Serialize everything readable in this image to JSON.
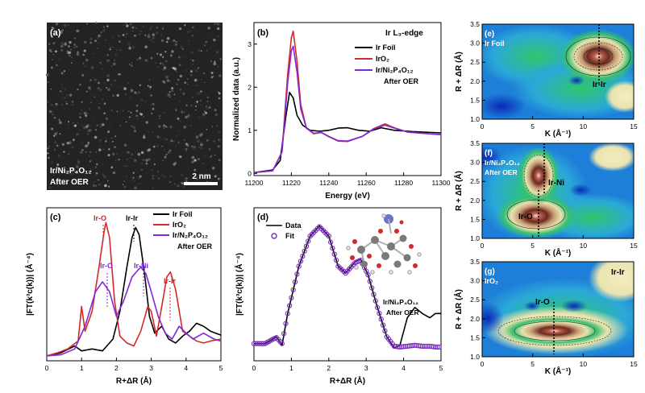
{
  "panels": {
    "a": {
      "label": "(a)",
      "sample_line1": "Ir/Ni₂P₄O₁₂",
      "sample_line2": "After OER",
      "scalebar": "2 nm"
    },
    "b": {
      "label": "(b)",
      "edge_title": "Ir L₃-edge",
      "xlabel": "Energy (eV)",
      "ylabel": "Normalized data (a.u.)"
    },
    "c": {
      "label": "(c)",
      "xlabel": "R+ΔR (Å)",
      "ylabel": "|FT(k³c(k))| (Å⁻⁴)"
    },
    "d": {
      "label": "(d)",
      "xlabel": "R+ΔR (Å)",
      "ylabel": "|FT(k³c(k))| (Å⁻⁴)",
      "sample_line1": "Ir/Ni₂P₄O₁₂",
      "sample_line2": "After OER"
    },
    "e": {
      "label": "(e)",
      "sample": "Ir Foil",
      "peak": "Ir-Ir"
    },
    "f": {
      "label": "(f)",
      "sample_line1": "Ir/Ni₂P₄O₁₂",
      "sample_line2": "After OER",
      "peak1": "Ir-Ni",
      "peak2": "Ir-O"
    },
    "g": {
      "label": "(g)",
      "sample": "IrO₂",
      "peak1": "Ir-O",
      "peak2": "Ir-Ir"
    },
    "wt_xlabel": "K (Å⁻¹)",
    "wt_ylabel": "R + ΔR (Å)"
  },
  "legends": {
    "b": [
      "Ir Foil",
      "IrO₂",
      "Ir/Ni₂P₄O₁₂",
      "After OER"
    ],
    "c": [
      "Ir Foil",
      "IrO₂",
      "Ir/N₂P₄O₁₂",
      "After OER"
    ],
    "d": [
      "Data",
      "Fit"
    ]
  },
  "annotations_c": {
    "iro_red": "Ir-O",
    "irir_black": "Ir-Ir",
    "iro_purple": "Ir-O",
    "irni_purple": "Ir-Ni",
    "irir_red": "Ir-Ir"
  },
  "colors": {
    "ir_foil": "#000000",
    "iro2": "#d62828",
    "catalyst": "#7f28d6",
    "fit": "#7b2cbf"
  },
  "chart_data": [
    {
      "panel": "b",
      "type": "line",
      "xlim": [
        11200,
        11300
      ],
      "ylim": [
        -0.05,
        3.5
      ],
      "xticks": [
        11200,
        11220,
        11240,
        11260,
        11280,
        11300
      ],
      "yticks": [
        0,
        1,
        2,
        3
      ],
      "series": [
        {
          "name": "Ir Foil",
          "color": "#000000",
          "points": [
            [
              11200,
              0.02
            ],
            [
              11210,
              0.08
            ],
            [
              11214,
              0.3
            ],
            [
              11217,
              1.3
            ],
            [
              11219,
              1.88
            ],
            [
              11221,
              1.75
            ],
            [
              11223,
              1.35
            ],
            [
              11226,
              1.12
            ],
            [
              11230,
              1.0
            ],
            [
              11235,
              0.98
            ],
            [
              11240,
              1.0
            ],
            [
              11245,
              1.05
            ],
            [
              11250,
              1.06
            ],
            [
              11256,
              1.0
            ],
            [
              11262,
              0.98
            ],
            [
              11268,
              1.06
            ],
            [
              11275,
              1.0
            ],
            [
              11285,
              0.97
            ],
            [
              11300,
              0.94
            ]
          ]
        },
        {
          "name": "IrO₂",
          "color": "#d62828",
          "points": [
            [
              11200,
              0.02
            ],
            [
              11210,
              0.06
            ],
            [
              11215,
              0.5
            ],
            [
              11218,
              2.3
            ],
            [
              11220,
              3.15
            ],
            [
              11221,
              3.3
            ],
            [
              11223,
              2.6
            ],
            [
              11225,
              1.6
            ],
            [
              11228,
              1.05
            ],
            [
              11232,
              0.92
            ],
            [
              11236,
              0.95
            ],
            [
              11240,
              0.85
            ],
            [
              11245,
              0.75
            ],
            [
              11250,
              0.74
            ],
            [
              11258,
              0.86
            ],
            [
              11264,
              1.04
            ],
            [
              11270,
              1.15
            ],
            [
              11275,
              1.06
            ],
            [
              11282,
              0.96
            ],
            [
              11290,
              0.93
            ],
            [
              11300,
              0.9
            ]
          ]
        },
        {
          "name": "Ir/Ni₂P₄O₁₂ After OER",
          "color": "#7f28d6",
          "points": [
            [
              11200,
              0.02
            ],
            [
              11210,
              0.06
            ],
            [
              11215,
              0.5
            ],
            [
              11218,
              2.1
            ],
            [
              11220,
              2.85
            ],
            [
              11221,
              2.95
            ],
            [
              11223,
              2.35
            ],
            [
              11225,
              1.5
            ],
            [
              11228,
              1.05
            ],
            [
              11232,
              0.93
            ],
            [
              11236,
              0.95
            ],
            [
              11240,
              0.86
            ],
            [
              11245,
              0.76
            ],
            [
              11250,
              0.75
            ],
            [
              11258,
              0.86
            ],
            [
              11264,
              1.03
            ],
            [
              11270,
              1.12
            ],
            [
              11275,
              1.05
            ],
            [
              11282,
              0.96
            ],
            [
              11290,
              0.93
            ],
            [
              11300,
              0.9
            ]
          ]
        }
      ]
    },
    {
      "panel": "c",
      "type": "line",
      "xlim": [
        0,
        5
      ],
      "xticks": [
        0,
        1,
        2,
        3,
        4,
        5
      ],
      "series": [
        {
          "name": "Ir Foil",
          "color": "#000000",
          "points": [
            [
              0,
              0.05
            ],
            [
              0.4,
              0.08
            ],
            [
              0.8,
              0.15
            ],
            [
              1.0,
              0.1
            ],
            [
              1.3,
              0.12
            ],
            [
              1.6,
              0.1
            ],
            [
              1.9,
              0.22
            ],
            [
              2.1,
              0.5
            ],
            [
              2.3,
              0.95
            ],
            [
              2.45,
              1.25
            ],
            [
              2.55,
              1.35
            ],
            [
              2.65,
              1.28
            ],
            [
              2.8,
              0.9
            ],
            [
              2.95,
              0.45
            ],
            [
              3.1,
              0.28
            ],
            [
              3.3,
              0.35
            ],
            [
              3.5,
              0.22
            ],
            [
              3.7,
              0.18
            ],
            [
              3.9,
              0.25
            ],
            [
              4.1,
              0.3
            ],
            [
              4.3,
              0.38
            ],
            [
              4.5,
              0.35
            ],
            [
              4.7,
              0.3
            ],
            [
              4.85,
              0.28
            ],
            [
              5.0,
              0.26
            ]
          ]
        },
        {
          "name": "IrO₂",
          "color": "#d62828",
          "points": [
            [
              0,
              0.05
            ],
            [
              0.3,
              0.08
            ],
            [
              0.6,
              0.12
            ],
            [
              0.9,
              0.2
            ],
            [
              1.0,
              0.55
            ],
            [
              1.1,
              0.3
            ],
            [
              1.3,
              0.5
            ],
            [
              1.5,
              0.95
            ],
            [
              1.65,
              1.32
            ],
            [
              1.7,
              1.4
            ],
            [
              1.8,
              1.25
            ],
            [
              1.95,
              0.6
            ],
            [
              2.1,
              0.25
            ],
            [
              2.3,
              0.18
            ],
            [
              2.5,
              0.15
            ],
            [
              2.7,
              0.3
            ],
            [
              2.9,
              0.55
            ],
            [
              3.0,
              0.5
            ],
            [
              3.15,
              0.25
            ],
            [
              3.3,
              0.55
            ],
            [
              3.45,
              0.85
            ],
            [
              3.55,
              0.9
            ],
            [
              3.7,
              0.72
            ],
            [
              3.9,
              0.3
            ],
            [
              4.1,
              0.25
            ],
            [
              4.3,
              0.2
            ],
            [
              4.5,
              0.18
            ],
            [
              4.7,
              0.2
            ],
            [
              5.0,
              0.22
            ]
          ]
        },
        {
          "name": "Ir/N₂P₄O₁₂ After OER",
          "color": "#7f28d6",
          "points": [
            [
              0,
              0.05
            ],
            [
              0.4,
              0.06
            ],
            [
              0.8,
              0.12
            ],
            [
              1.1,
              0.35
            ],
            [
              1.4,
              0.7
            ],
            [
              1.6,
              0.8
            ],
            [
              1.8,
              0.7
            ],
            [
              2.0,
              0.45
            ],
            [
              2.2,
              0.6
            ],
            [
              2.45,
              0.85
            ],
            [
              2.7,
              0.95
            ],
            [
              2.85,
              0.88
            ],
            [
              3.0,
              0.7
            ],
            [
              3.2,
              0.45
            ],
            [
              3.4,
              0.28
            ],
            [
              3.6,
              0.22
            ],
            [
              3.8,
              0.35
            ],
            [
              4.0,
              0.28
            ],
            [
              4.2,
              0.22
            ],
            [
              4.5,
              0.28
            ],
            [
              4.8,
              0.22
            ],
            [
              5.0,
              0.2
            ]
          ]
        }
      ]
    },
    {
      "panel": "d",
      "type": "line",
      "xlim": [
        0,
        5
      ],
      "xticks": [
        0,
        1,
        2,
        3,
        4,
        5
      ],
      "series": [
        {
          "name": "Data",
          "color": "#000000",
          "points": [
            [
              0,
              0.2
            ],
            [
              0.3,
              0.2
            ],
            [
              0.5,
              0.25
            ],
            [
              0.6,
              0.28
            ],
            [
              0.75,
              0.18
            ],
            [
              0.9,
              0.55
            ],
            [
              1.2,
              1.1
            ],
            [
              1.5,
              1.45
            ],
            [
              1.75,
              1.57
            ],
            [
              2.0,
              1.45
            ],
            [
              2.25,
              1.1
            ],
            [
              2.45,
              1.02
            ],
            [
              2.7,
              1.15
            ],
            [
              2.85,
              1.18
            ],
            [
              3.05,
              1.0
            ],
            [
              3.3,
              0.62
            ],
            [
              3.55,
              0.28
            ],
            [
              3.75,
              0.15
            ],
            [
              3.9,
              0.18
            ],
            [
              4.1,
              0.5
            ],
            [
              4.3,
              0.62
            ],
            [
              4.5,
              0.55
            ],
            [
              4.7,
              0.5
            ],
            [
              4.85,
              0.55
            ],
            [
              5.0,
              0.55
            ]
          ]
        },
        {
          "name": "Fit",
          "color": "#7b2cbf",
          "points": [
            [
              0,
              0.2
            ],
            [
              0.3,
              0.2
            ],
            [
              0.5,
              0.25
            ],
            [
              0.6,
              0.27
            ],
            [
              0.75,
              0.2
            ],
            [
              0.9,
              0.55
            ],
            [
              1.2,
              1.1
            ],
            [
              1.5,
              1.45
            ],
            [
              1.75,
              1.56
            ],
            [
              2.0,
              1.45
            ],
            [
              2.25,
              1.1
            ],
            [
              2.45,
              1.02
            ],
            [
              2.7,
              1.14
            ],
            [
              2.85,
              1.17
            ],
            [
              3.05,
              1.0
            ],
            [
              3.3,
              0.62
            ],
            [
              3.55,
              0.28
            ],
            [
              3.75,
              0.17
            ],
            [
              3.9,
              0.16
            ],
            [
              4.1,
              0.17
            ],
            [
              4.3,
              0.18
            ],
            [
              4.5,
              0.17
            ],
            [
              4.7,
              0.17
            ],
            [
              4.85,
              0.16
            ],
            [
              5.0,
              0.16
            ]
          ]
        }
      ]
    },
    {
      "panel": "e",
      "type": "heatmap",
      "xlim": [
        0,
        15
      ],
      "ylim": [
        1.0,
        3.5
      ],
      "xticks": [
        0,
        5,
        10,
        15
      ],
      "yticks": [
        1.0,
        1.5,
        2.0,
        2.5,
        3.0,
        3.5
      ],
      "maxima": [
        {
          "k": 11.5,
          "r": 2.65,
          "intensity": 1.0
        }
      ]
    },
    {
      "panel": "f",
      "type": "heatmap",
      "xlim": [
        0,
        15
      ],
      "ylim": [
        1.0,
        3.5
      ],
      "xticks": [
        0,
        5,
        10,
        15
      ],
      "yticks": [
        1.0,
        1.5,
        2.0,
        2.5,
        3.0,
        3.5
      ],
      "maxima": [
        {
          "k": 6.0,
          "r": 1.6,
          "intensity": 1.0
        },
        {
          "k": 6.5,
          "r": 2.8,
          "intensity": 0.75
        }
      ]
    },
    {
      "panel": "g",
      "type": "heatmap",
      "xlim": [
        0,
        15
      ],
      "ylim": [
        1.0,
        3.5
      ],
      "xticks": [
        0,
        5,
        10,
        15
      ],
      "yticks": [
        1.0,
        1.5,
        2.0,
        2.5,
        3.0,
        3.5
      ],
      "maxima": [
        {
          "k": 7.0,
          "r": 1.6,
          "intensity": 1.0
        }
      ]
    }
  ]
}
